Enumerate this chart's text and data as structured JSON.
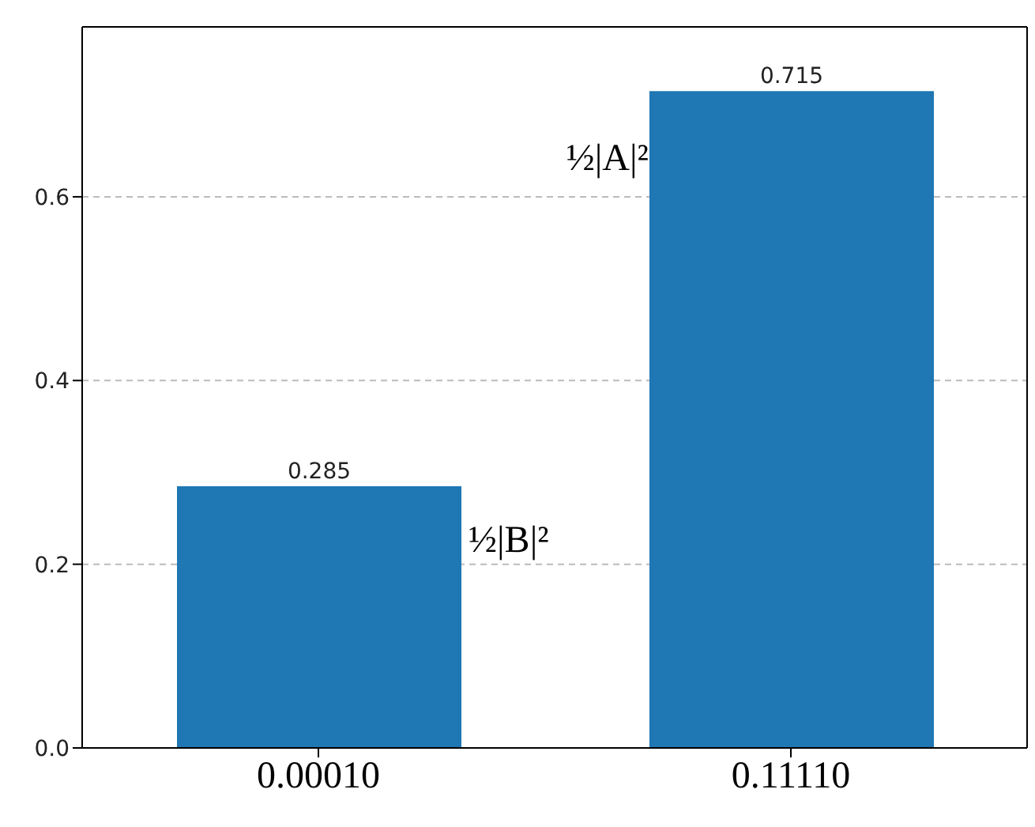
{
  "chart_data": {
    "type": "bar",
    "categories": [
      "0.00010",
      "0.11110"
    ],
    "values": [
      0.285,
      0.715
    ],
    "color": "#1f77b4",
    "ylim": [
      0,
      0.785
    ],
    "yticks": [
      {
        "value": 0,
        "label": "0.0"
      },
      {
        "value": 0.2,
        "label": "0.2"
      },
      {
        "value": 0.4,
        "label": "0.4"
      },
      {
        "value": 0.6,
        "label": "0.6"
      }
    ],
    "grid": "y",
    "data_labels": true,
    "annotations": [
      "½|B|²",
      "½|A|²"
    ]
  }
}
